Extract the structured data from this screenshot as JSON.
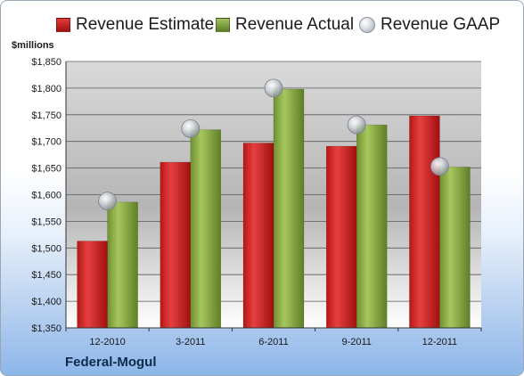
{
  "chart_data": {
    "type": "bar",
    "categories": [
      "12-2010",
      "3-2011",
      "6-2011",
      "9-2011",
      "12-2011"
    ],
    "series": [
      {
        "name": "Revenue Estimate",
        "values": [
          1513,
          1661,
          1697,
          1691,
          1748
        ],
        "color": "#cc1f1f",
        "kind": "bar"
      },
      {
        "name": "Revenue Actual",
        "values": [
          1586,
          1722,
          1798,
          1731,
          1652
        ],
        "color": "#7fa13c",
        "kind": "bar"
      },
      {
        "name": "Revenue GAAP",
        "values": [
          1588,
          1724,
          1800,
          1731,
          1653
        ],
        "color": "#c8ccd2",
        "kind": "marker"
      }
    ],
    "ylim": [
      1350,
      1850
    ],
    "yticks": [
      "$1,350",
      "$1,400",
      "$1,450",
      "$1,500",
      "$1,550",
      "$1,600",
      "$1,650",
      "$1,700",
      "$1,750",
      "$1,800",
      "$1,850"
    ],
    "ylabel": "$millions",
    "grid": true,
    "legend": "top",
    "company": "Federal-Mogul"
  }
}
